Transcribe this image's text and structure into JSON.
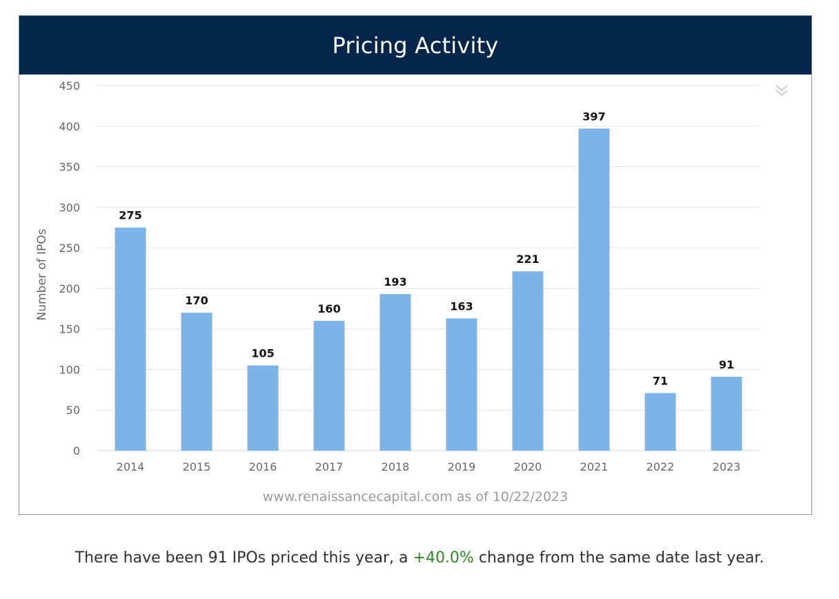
{
  "header": {
    "title": "Pricing Activity"
  },
  "chart_data": {
    "type": "bar",
    "categories": [
      "2014",
      "2015",
      "2016",
      "2017",
      "2018",
      "2019",
      "2020",
      "2021",
      "2022",
      "2023"
    ],
    "values": [
      275,
      170,
      105,
      160,
      193,
      163,
      221,
      397,
      71,
      91
    ],
    "data_labels": [
      "275",
      "170",
      "105",
      "160",
      "193",
      "163",
      "221",
      "397",
      "71",
      "91"
    ],
    "title": "",
    "xlabel": "",
    "ylabel": "Number of IPOs",
    "ylim": [
      0,
      450
    ],
    "yticks": [
      "0",
      "50",
      "100",
      "150",
      "200",
      "250",
      "300",
      "350",
      "400",
      "450"
    ],
    "grid": true,
    "legend": "none",
    "bar_color": "#7cb4e9"
  },
  "footer": {
    "source": "www.renaissancecapital.com as of 10/22/2023"
  },
  "summary": {
    "prefix": "There have been 91 IPOs priced this year, a ",
    "change": "+40.0%",
    "suffix": " change from the same date last year."
  },
  "colors": {
    "header_bg": "#03264a",
    "positive_change": "#2a8a1e"
  },
  "icons": {
    "menu": "chevron-double-down-icon"
  }
}
